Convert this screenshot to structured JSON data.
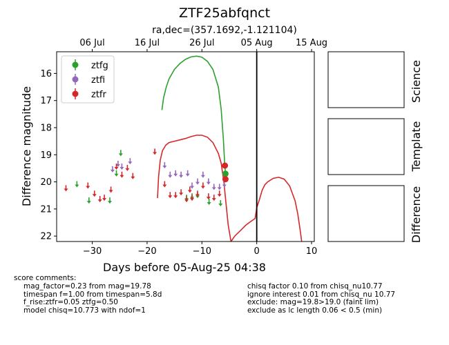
{
  "chart_data": {
    "type": "scatter",
    "title": "ZTF25abfqnct",
    "subtitle": "ra,dec=(357.1692,-1.121104)",
    "xlabel": "Days before 05-Aug-25 04:38",
    "ylabel": "Difference magnitude",
    "xlim": [
      -36.5,
      10.5
    ],
    "ylim": [
      22.2,
      15.2
    ],
    "x_ticks": [
      -30,
      -20,
      -10,
      0,
      10
    ],
    "y_ticks": [
      16,
      17,
      18,
      19,
      20,
      21,
      22
    ],
    "top_axis_ticks": [
      {
        "label": "06 Jul",
        "x": -30
      },
      {
        "label": "16 Jul",
        "x": -20
      },
      {
        "label": "26 Jul",
        "x": -10
      },
      {
        "label": "05 Aug",
        "x": 0
      },
      {
        "label": "15 Aug",
        "x": 10
      }
    ],
    "vline_x": 0,
    "legend_position": "upper-left",
    "legend": [
      {
        "label": "ztfg",
        "color": "#2ca02c"
      },
      {
        "label": "ztfi",
        "color": "#9467bd"
      },
      {
        "label": "ztfr",
        "color": "#d62728"
      }
    ],
    "series": [
      {
        "name": "ztfg",
        "color": "#2ca02c",
        "detections": [
          {
            "x": -5.7,
            "y": 19.7,
            "err": 0.05
          }
        ],
        "upper_limits": [
          {
            "x": -32.8,
            "y": 20.1
          },
          {
            "x": -30.6,
            "y": 20.7
          },
          {
            "x": -26.8,
            "y": 20.7
          },
          {
            "x": -25.6,
            "y": 19.7
          },
          {
            "x": -24.8,
            "y": 18.95
          },
          {
            "x": -12.8,
            "y": 20.6
          },
          {
            "x": -11.8,
            "y": 20.55
          },
          {
            "x": -10.8,
            "y": 20.5
          },
          {
            "x": -8.7,
            "y": 20.75
          },
          {
            "x": -6.6,
            "y": 20.8
          }
        ]
      },
      {
        "name": "ztfi",
        "color": "#9467bd",
        "detections": [],
        "upper_limits": [
          {
            "x": -26.3,
            "y": 19.55
          },
          {
            "x": -25.3,
            "y": 19.35
          },
          {
            "x": -24.6,
            "y": 19.45
          },
          {
            "x": -23.1,
            "y": 19.25
          },
          {
            "x": -16.8,
            "y": 19.4
          },
          {
            "x": -15.8,
            "y": 19.75
          },
          {
            "x": -14.8,
            "y": 19.7
          },
          {
            "x": -13.8,
            "y": 19.75
          },
          {
            "x": -12.6,
            "y": 19.7
          },
          {
            "x": -11.8,
            "y": 20.15
          },
          {
            "x": -10.8,
            "y": 20.0
          },
          {
            "x": -9.8,
            "y": 19.75
          },
          {
            "x": -8.8,
            "y": 20.0
          },
          {
            "x": -7.8,
            "y": 20.2
          },
          {
            "x": -6.8,
            "y": 20.2
          },
          {
            "x": -5.9,
            "y": 20.1
          }
        ]
      },
      {
        "name": "ztfr",
        "color": "#d62728",
        "detections": [
          {
            "x": -5.8,
            "y": 19.4,
            "err": 0.05
          },
          {
            "x": -5.7,
            "y": 19.9,
            "err": 0.05
          }
        ],
        "upper_limits": [
          {
            "x": -34.8,
            "y": 20.25
          },
          {
            "x": -30.8,
            "y": 20.15
          },
          {
            "x": -29.6,
            "y": 20.45
          },
          {
            "x": -28.6,
            "y": 20.65
          },
          {
            "x": -27.8,
            "y": 20.6
          },
          {
            "x": -26.6,
            "y": 20.3
          },
          {
            "x": -25.6,
            "y": 19.45
          },
          {
            "x": -24.6,
            "y": 19.75
          },
          {
            "x": -23.6,
            "y": 19.5
          },
          {
            "x": -22.6,
            "y": 19.8
          },
          {
            "x": -18.6,
            "y": 18.9
          },
          {
            "x": -16.8,
            "y": 20.1
          },
          {
            "x": -15.8,
            "y": 20.5
          },
          {
            "x": -14.8,
            "y": 20.5
          },
          {
            "x": -13.8,
            "y": 20.4
          },
          {
            "x": -12.8,
            "y": 20.65
          },
          {
            "x": -12.2,
            "y": 20.3
          },
          {
            "x": -11.8,
            "y": 20.6
          },
          {
            "x": -10.8,
            "y": 20.45
          },
          {
            "x": -9.8,
            "y": 20.15
          },
          {
            "x": -8.8,
            "y": 20.55
          },
          {
            "x": -7.8,
            "y": 20.6
          },
          {
            "x": -6.8,
            "y": 20.45
          }
        ]
      }
    ],
    "model_curves": [
      {
        "name": "ztfg-model",
        "color": "#2ca02c",
        "points": [
          [
            -17.3,
            17.35
          ],
          [
            -17.0,
            16.9
          ],
          [
            -16.5,
            16.5
          ],
          [
            -16.0,
            16.2
          ],
          [
            -15.0,
            15.85
          ],
          [
            -14.0,
            15.63
          ],
          [
            -13.0,
            15.48
          ],
          [
            -12.0,
            15.39
          ],
          [
            -11.0,
            15.36
          ],
          [
            -10.0,
            15.4
          ],
          [
            -9.0,
            15.55
          ],
          [
            -8.0,
            15.85
          ],
          [
            -7.0,
            16.5
          ],
          [
            -6.5,
            17.3
          ],
          [
            -6.1,
            18.4
          ],
          [
            -5.85,
            19.3
          ],
          [
            -5.7,
            19.7
          ]
        ]
      },
      {
        "name": "ztfr-model-left",
        "color": "#d62728",
        "points": [
          [
            -18.1,
            20.6
          ],
          [
            -17.9,
            19.8
          ],
          [
            -17.6,
            19.2
          ],
          [
            -17.2,
            18.85
          ],
          [
            -16.6,
            18.65
          ],
          [
            -16.0,
            18.55
          ],
          [
            -15.0,
            18.5
          ],
          [
            -14.0,
            18.45
          ],
          [
            -13.0,
            18.4
          ],
          [
            -12.0,
            18.33
          ],
          [
            -11.0,
            18.28
          ],
          [
            -10.0,
            18.28
          ],
          [
            -9.0,
            18.35
          ],
          [
            -8.0,
            18.55
          ],
          [
            -7.0,
            18.95
          ],
          [
            -6.5,
            19.3
          ],
          [
            -6.0,
            20.0
          ],
          [
            -5.6,
            20.8
          ],
          [
            -5.2,
            21.6
          ],
          [
            -4.7,
            22.2
          ]
        ]
      },
      {
        "name": "ztfr-model-right",
        "color": "#d62728",
        "points": [
          [
            -4.7,
            22.2
          ],
          [
            -4.0,
            22.0
          ],
          [
            -3.0,
            21.8
          ],
          [
            -2.0,
            21.6
          ],
          [
            -1.0,
            21.45
          ],
          [
            -0.3,
            21.35
          ],
          [
            0.0,
            20.95
          ],
          [
            0.5,
            20.65
          ],
          [
            1.0,
            20.3
          ],
          [
            1.5,
            20.1
          ],
          [
            2.0,
            20.0
          ],
          [
            3.0,
            19.87
          ],
          [
            4.0,
            19.83
          ],
          [
            5.0,
            19.9
          ],
          [
            6.0,
            20.15
          ],
          [
            7.0,
            20.7
          ],
          [
            7.5,
            21.2
          ],
          [
            8.0,
            21.9
          ],
          [
            8.2,
            22.2
          ]
        ]
      }
    ]
  },
  "image_panels": [
    {
      "key": "science",
      "label": "Science"
    },
    {
      "key": "template",
      "label": "Template"
    },
    {
      "key": "difference",
      "label": "Difference"
    }
  ],
  "comments": {
    "header": "score comments:",
    "left": [
      "mag_factor=0.23 from mag=19.78",
      "timespan f=1.00 from timespan=5.8d",
      "f_rise:ztfr=0.05 ztfg=0.50",
      "model chisq=10.773 with ndof=1"
    ],
    "right": [
      "chisq factor 0.10 from chisq_nu10.77",
      "ignore interest 0.01 from chisq_nu 10.77",
      "exclude: mag=19.8>19.0 (faint lim)",
      "exclude as lc length 0.06 < 0.5 (min)"
    ]
  }
}
